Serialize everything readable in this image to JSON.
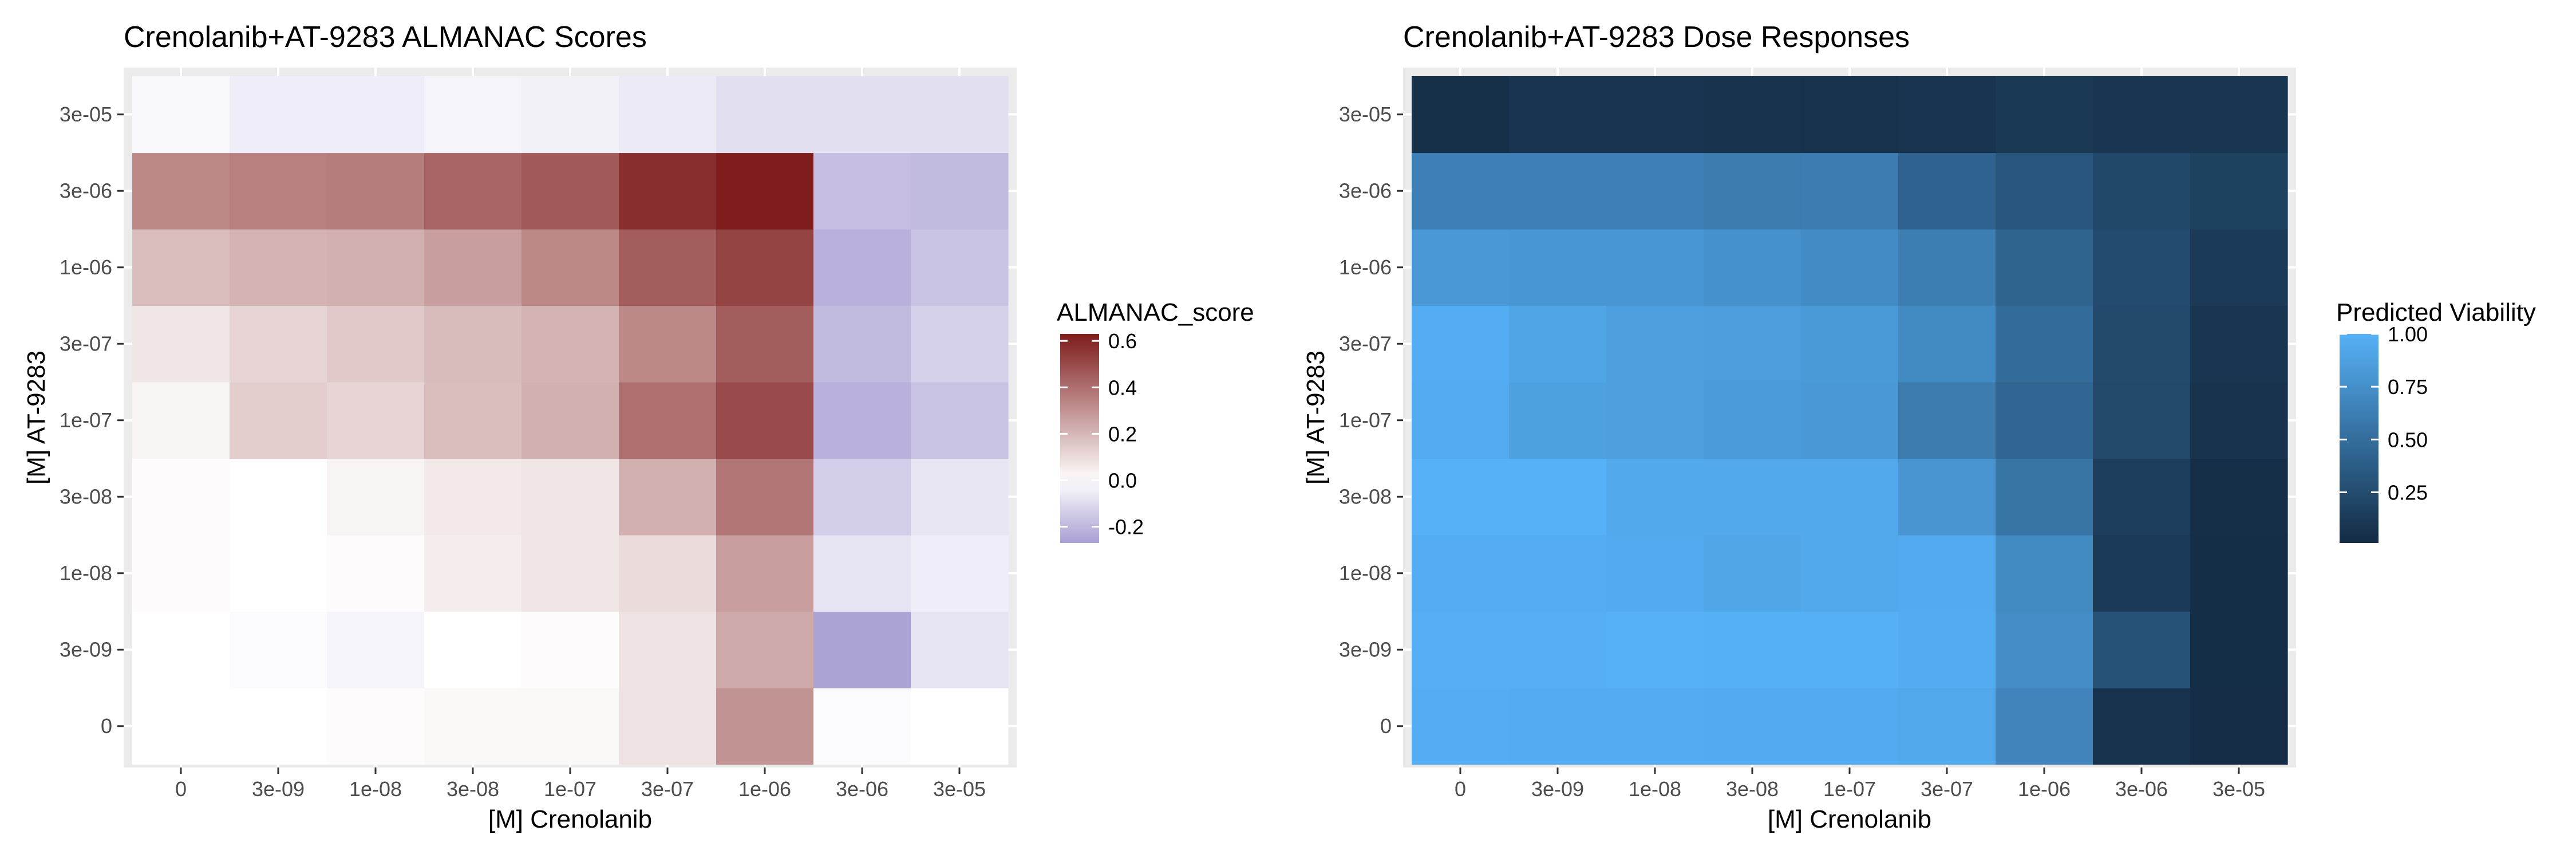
{
  "chart_data": [
    {
      "type": "heatmap",
      "title": "Crenolanib+AT-9283 ALMANAC Scores",
      "xlabel": "[M] Crenolanib",
      "ylabel": "[M] AT-9283",
      "x_categories": [
        "0",
        "3e-09",
        "1e-08",
        "3e-08",
        "1e-07",
        "3e-07",
        "1e-06",
        "3e-06",
        "3e-05"
      ],
      "y_categories": [
        "0",
        "3e-09",
        "1e-08",
        "3e-08",
        "1e-07",
        "3e-07",
        "1e-06",
        "3e-06",
        "3e-05"
      ],
      "values": [
        [
          0.0,
          0.0,
          0.01,
          0.02,
          0.02,
          0.08,
          0.3,
          -0.01,
          0.0
        ],
        [
          0.0,
          -0.01,
          -0.03,
          0.0,
          0.01,
          0.08,
          0.24,
          -0.26,
          -0.08
        ],
        [
          0.01,
          0.0,
          0.01,
          0.05,
          0.07,
          0.1,
          0.27,
          -0.08,
          -0.05
        ],
        [
          0.01,
          0.0,
          0.03,
          0.06,
          0.07,
          0.22,
          0.38,
          -0.14,
          -0.07
        ],
        [
          0.03,
          0.14,
          0.12,
          0.18,
          0.22,
          0.4,
          0.5,
          -0.22,
          -0.17
        ],
        [
          0.07,
          0.12,
          0.15,
          0.19,
          0.21,
          0.33,
          0.45,
          -0.19,
          -0.13
        ],
        [
          0.18,
          0.21,
          0.22,
          0.27,
          0.33,
          0.45,
          0.52,
          -0.22,
          -0.17
        ],
        [
          0.33,
          0.35,
          0.36,
          0.43,
          0.46,
          0.58,
          0.63,
          -0.18,
          -0.19
        ],
        [
          -0.02,
          -0.05,
          -0.05,
          -0.03,
          -0.04,
          -0.06,
          -0.09,
          -0.09,
          -0.09
        ]
      ],
      "colorbar": {
        "title": "ALMANAC_score",
        "ticks": [
          0.6,
          0.4,
          0.2,
          0.0,
          -0.2
        ],
        "tick_labels": [
          "0.6",
          "0.4",
          "0.2",
          "0.0",
          "-0.2"
        ],
        "range": [
          -0.27,
          0.63
        ],
        "low_color": "#a99fd3",
        "mid_color": "#ffffff",
        "high_color": "#7f1c1c"
      },
      "grid": true,
      "legend_position": "right"
    },
    {
      "type": "heatmap",
      "title": "Crenolanib+AT-9283 Dose Responses",
      "xlabel": "[M] Crenolanib",
      "ylabel": "[M] AT-9283",
      "x_categories": [
        "0",
        "3e-09",
        "1e-08",
        "3e-08",
        "1e-07",
        "3e-07",
        "1e-06",
        "3e-06",
        "3e-05"
      ],
      "y_categories": [
        "0",
        "3e-09",
        "1e-08",
        "3e-08",
        "1e-07",
        "3e-07",
        "1e-06",
        "3e-06",
        "3e-05"
      ],
      "values": [
        [
          0.97,
          0.96,
          0.96,
          0.95,
          0.95,
          0.93,
          0.67,
          0.06,
          0.02
        ],
        [
          0.98,
          0.98,
          1.0,
          0.99,
          0.99,
          0.96,
          0.73,
          0.3,
          0.03
        ],
        [
          0.97,
          0.97,
          0.95,
          0.92,
          0.93,
          0.95,
          0.71,
          0.12,
          0.03
        ],
        [
          1.0,
          1.0,
          0.94,
          0.93,
          0.93,
          0.79,
          0.56,
          0.14,
          0.04
        ],
        [
          0.96,
          0.88,
          0.87,
          0.84,
          0.82,
          0.6,
          0.44,
          0.23,
          0.07
        ],
        [
          0.97,
          0.91,
          0.87,
          0.85,
          0.83,
          0.71,
          0.49,
          0.24,
          0.09
        ],
        [
          0.82,
          0.8,
          0.8,
          0.76,
          0.72,
          0.62,
          0.43,
          0.25,
          0.12
        ],
        [
          0.64,
          0.64,
          0.64,
          0.6,
          0.61,
          0.42,
          0.33,
          0.22,
          0.17
        ],
        [
          0.05,
          0.08,
          0.08,
          0.07,
          0.06,
          0.08,
          0.11,
          0.09,
          0.09
        ]
      ],
      "colorbar": {
        "title": "Predicted Viability",
        "ticks": [
          1.0,
          0.75,
          0.5,
          0.25
        ],
        "tick_labels": [
          "1.00",
          "0.75",
          "0.50",
          "0.25"
        ],
        "range": [
          0.01,
          1.0
        ],
        "low_color": "#132b43",
        "high_color": "#56b1f7"
      },
      "grid": true,
      "legend_position": "right"
    }
  ]
}
